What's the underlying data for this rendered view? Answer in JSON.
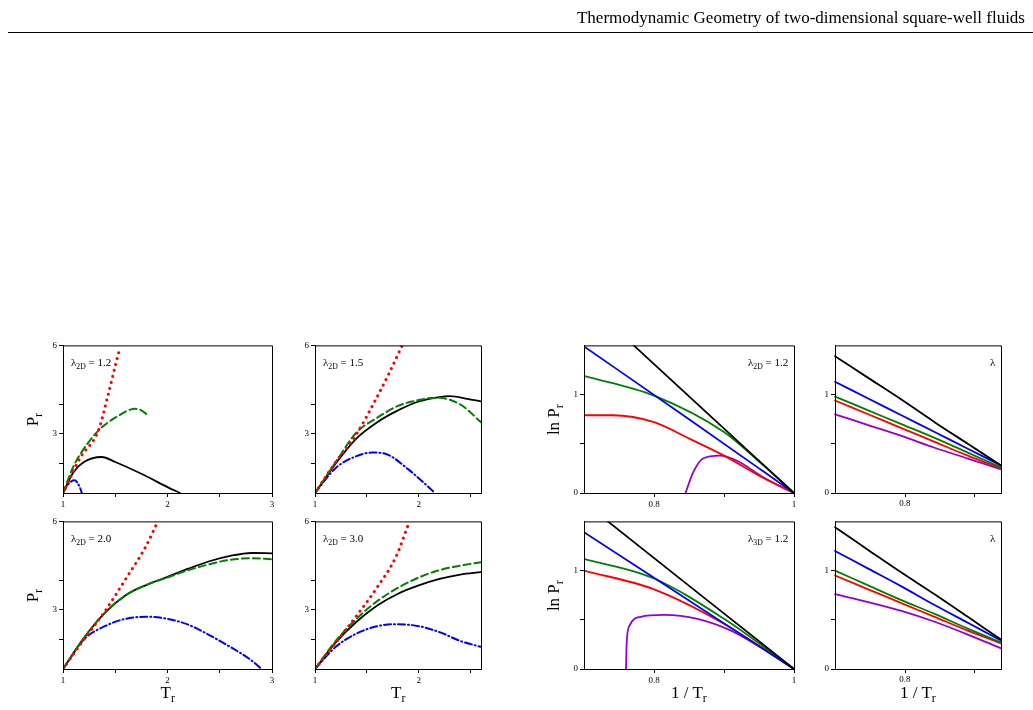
{
  "chart_data": [
    {
      "type": "line",
      "annotations": [
        "λ$_{2D}$ = 1.2"
      ],
      "ylabel": "P$_{r}$",
      "xlim": [
        1,
        3
      ],
      "ylim": [
        1,
        6
      ],
      "xticks": [
        1,
        {
          "value": 1.5,
          "label": null
        },
        2,
        {
          "value": 2.5,
          "label": null
        },
        3
      ],
      "yticks": [
        {
          "value": 2,
          "label": null
        },
        3,
        {
          "value": 4,
          "label": null
        },
        6
      ],
      "series": [
        {
          "color": "#ff0000",
          "line_style": "dotted",
          "x": [
            1,
            1.16,
            1.34,
            1.43,
            1.51,
            1.54
          ],
          "values": [
            1,
            2.17,
            3.13,
            4.3,
            5.45,
            5.85
          ]
        },
        {
          "color": "#008000",
          "line_style": "dashed",
          "x": [
            1,
            1.1,
            1.22,
            1.35,
            1.5,
            1.69,
            1.75,
            1.81
          ],
          "values": [
            1,
            1.9,
            2.6,
            3.15,
            3.55,
            3.85,
            3.8,
            3.64
          ]
        },
        {
          "color": "#000000",
          "line_style": "solid",
          "x": [
            1,
            1.1,
            1.2,
            1.37,
            1.5,
            1.75,
            2,
            2.12
          ],
          "values": [
            1,
            1.7,
            2.05,
            2.22,
            2.05,
            1.65,
            1.2,
            1
          ]
        },
        {
          "color": "#0000ff",
          "line_style": "dashdot",
          "x": [
            1,
            1.05,
            1.11,
            1.16,
            1.18
          ],
          "values": [
            1,
            1.3,
            1.43,
            1.2,
            1
          ]
        }
      ]
    },
    {
      "type": "line",
      "annotations": [
        "λ$_{2D}$ = 1.5"
      ],
      "xlim": [
        1,
        2.6
      ],
      "ylim": [
        1,
        6
      ],
      "xticks": [
        1,
        {
          "value": 1.5,
          "label": null
        },
        2,
        {
          "value": 2.5,
          "label": null
        }
      ],
      "yticks": [
        {
          "value": 2,
          "label": null
        },
        3,
        {
          "value": 4,
          "label": null
        },
        6
      ],
      "series": [
        {
          "color": "#ff0000",
          "line_style": "dotted",
          "x": [
            1,
            1.19,
            1.4,
            1.59,
            1.72,
            1.84
          ],
          "values": [
            1,
            2,
            3,
            4.2,
            5.1,
            6
          ]
        },
        {
          "color": "#008000",
          "line_style": "dashed",
          "x": [
            1,
            1.2,
            1.4,
            1.6,
            1.8,
            2,
            2.17,
            2.4,
            2.6
          ],
          "values": [
            1,
            2.05,
            3.05,
            3.55,
            3.95,
            4.15,
            4.23,
            4,
            3.4
          ]
        },
        {
          "color": "#000000",
          "line_style": "solid",
          "x": [
            1,
            1.2,
            1.4,
            1.6,
            1.8,
            2,
            2.2,
            2.3,
            2.45,
            2.6
          ],
          "values": [
            1,
            2,
            2.85,
            3.4,
            3.8,
            4.1,
            4.25,
            4.28,
            4.2,
            4.1
          ]
        },
        {
          "color": "#0000ff",
          "line_style": "dashdot",
          "x": [
            1,
            1.2,
            1.4,
            1.55,
            1.7,
            1.9,
            2,
            2.14
          ],
          "values": [
            1,
            1.85,
            2.25,
            2.37,
            2.3,
            1.8,
            1.5,
            1.05
          ]
        }
      ]
    },
    {
      "type": "line",
      "annotations": [
        "λ$_{2D}$ = 2.0"
      ],
      "xlabel": "T$_{r}$",
      "ylabel": "P$_{r}$",
      "xlim": [
        1,
        3
      ],
      "ylim": [
        1,
        6
      ],
      "xticks": [
        1,
        {
          "value": 1.5,
          "label": null
        },
        2,
        {
          "value": 2.5,
          "label": null
        },
        3
      ],
      "yticks": [
        {
          "value": 2,
          "label": null
        },
        3,
        {
          "value": 4,
          "label": null
        },
        6
      ],
      "series": [
        {
          "color": "#ff0000",
          "line_style": "dotted",
          "x": [
            1,
            1.2,
            1.4,
            1.6,
            1.8,
            1.9
          ],
          "values": [
            1,
            2,
            2.95,
            4.05,
            5.2,
            5.95
          ]
        },
        {
          "color": "#008000",
          "line_style": "dashed",
          "x": [
            1,
            1.2,
            1.4,
            1.6,
            1.8,
            2,
            2.2,
            2.4,
            2.6,
            2.8,
            3
          ],
          "values": [
            1,
            2.05,
            2.9,
            3.5,
            3.85,
            4.1,
            4.35,
            4.55,
            4.7,
            4.75,
            4.72
          ]
        },
        {
          "color": "#000000",
          "line_style": "solid",
          "x": [
            1,
            1.2,
            1.4,
            1.6,
            1.8,
            2,
            2.2,
            2.4,
            2.6,
            2.8,
            3
          ],
          "values": [
            1,
            2.05,
            2.9,
            3.5,
            3.85,
            4.12,
            4.4,
            4.65,
            4.83,
            4.93,
            4.92
          ]
        },
        {
          "color": "#0000ff",
          "line_style": "dashdot",
          "x": [
            1,
            1.2,
            1.4,
            1.6,
            1.8,
            2,
            2.2,
            2.4,
            2.6,
            2.8,
            2.9
          ],
          "values": [
            1,
            2,
            2.45,
            2.7,
            2.77,
            2.7,
            2.5,
            2.15,
            1.75,
            1.3,
            1
          ]
        }
      ]
    },
    {
      "type": "line",
      "annotations": [
        "λ$_{2D}$ = 3.0"
      ],
      "xlabel": "T$_{r}$",
      "xlim": [
        1,
        2.6
      ],
      "ylim": [
        1,
        6
      ],
      "xticks": [
        1,
        {
          "value": 1.5,
          "label": null
        },
        2,
        {
          "value": 2.5,
          "label": null
        }
      ],
      "yticks": [
        {
          "value": 2,
          "label": null
        },
        3,
        {
          "value": 4,
          "label": null
        },
        6
      ],
      "series": [
        {
          "color": "#ff0000",
          "line_style": "dotted",
          "x": [
            1,
            1.2,
            1.4,
            1.59,
            1.78,
            1.9
          ],
          "values": [
            1,
            1.9,
            2.8,
            3.72,
            4.8,
            5.9
          ]
        },
        {
          "color": "#008000",
          "line_style": "dashed",
          "x": [
            1,
            1.2,
            1.4,
            1.6,
            1.8,
            2,
            2.2,
            2.4,
            2.6
          ],
          "values": [
            1,
            1.95,
            2.7,
            3.3,
            3.75,
            4.1,
            4.35,
            4.5,
            4.62
          ]
        },
        {
          "color": "#000000",
          "line_style": "solid",
          "x": [
            1,
            1.2,
            1.4,
            1.6,
            1.8,
            2,
            2.2,
            2.4,
            2.6
          ],
          "values": [
            1,
            1.9,
            2.6,
            3.15,
            3.55,
            3.83,
            4.05,
            4.2,
            4.28
          ]
        },
        {
          "color": "#0000ff",
          "line_style": "dashdot",
          "x": [
            1,
            1.2,
            1.4,
            1.6,
            1.78,
            2,
            2.2,
            2.4,
            2.6
          ],
          "values": [
            1,
            1.75,
            2.2,
            2.45,
            2.52,
            2.45,
            2.25,
            1.95,
            1.75
          ]
        }
      ]
    },
    {
      "type": "line",
      "title": "Thermodynamic Geometry of two-dimensional square-well fluids",
      "annotations": [
        "λ$_{2D}$ = 1.2"
      ],
      "ylabel": "ln P$_{r}$",
      "xlim": [
        0.7,
        1
      ],
      "ylim": [
        0,
        1.5
      ],
      "xticks": [
        0.8,
        {
          "value": 0.9,
          "label": null
        },
        1
      ],
      "yticks": [
        0,
        {
          "value": 0.5,
          "label": null
        },
        1
      ],
      "series": [
        {
          "color": "#000000",
          "line_style": "solid",
          "x": [
            0.771,
            1
          ],
          "values": [
            1.5,
            0
          ]
        },
        {
          "color": "#0000ff",
          "line_style": "solid",
          "x": [
            0.7,
            0.85,
            1
          ],
          "values": [
            1.49,
            0.75,
            0
          ]
        },
        {
          "color": "#008000",
          "line_style": "solid",
          "x": [
            0.7,
            0.8,
            0.9,
            0.95,
            1
          ],
          "values": [
            1.19,
            0.99,
            0.62,
            0.32,
            0
          ]
        },
        {
          "color": "#ff0000",
          "line_style": "solid",
          "x": [
            0.7,
            0.741,
            0.8,
            0.851,
            0.9,
            0.957,
            1
          ],
          "values": [
            0.79,
            0.79,
            0.72,
            0.55,
            0.38,
            0.15,
            0
          ]
        },
        {
          "color": "#9400d3",
          "line_style": "solid",
          "x": [
            0.845,
            0.856,
            0.87,
            0.894,
            0.918,
            0.956,
            1
          ],
          "values": [
            0,
            0.21,
            0.35,
            0.38,
            0.33,
            0.16,
            0
          ]
        }
      ]
    },
    {
      "type": "line",
      "annotations": [
        "λ",
        "0.8"
      ],
      "categories": [
        null,
        null,
        null,
        null,
        null,
        null
      ],
      "ylim": [
        0,
        1.5
      ],
      "yticks": [
        0,
        {
          "value": 0.5,
          "label": null
        },
        1
      ],
      "series": [
        {
          "color": "#000000",
          "line_style": "solid",
          "values": [
            1.39,
            1.17,
            0.95,
            0.72,
            0.5,
            0.28
          ]
        },
        {
          "color": "#0000ff",
          "line_style": "solid",
          "values": [
            1.13,
            0.96,
            0.79,
            0.62,
            0.45,
            0.28
          ]
        },
        {
          "color": "#008000",
          "line_style": "solid",
          "values": [
            0.98,
            0.84,
            0.7,
            0.56,
            0.41,
            0.26
          ]
        },
        {
          "color": "#ff0000",
          "line_style": "solid",
          "values": [
            0.94,
            0.8,
            0.66,
            0.52,
            0.38,
            0.25
          ]
        },
        {
          "color": "#9400d3",
          "line_style": "solid",
          "values": [
            0.8,
            0.69,
            0.58,
            0.46,
            0.35,
            0.24
          ]
        }
      ]
    },
    {
      "type": "line",
      "annotations": [
        "λ$_{3D}$ = 1.2"
      ],
      "xlabel": "1 / T$_{r}$",
      "ylabel": "ln P$_{r}$",
      "xlim": [
        0.7,
        1
      ],
      "ylim": [
        0,
        1.5
      ],
      "xticks": [
        0.8,
        {
          "value": 0.9,
          "label": null
        },
        1
      ],
      "yticks": [
        0,
        {
          "value": 0.5,
          "label": null
        },
        1
      ],
      "series": [
        {
          "color": "#000000",
          "line_style": "solid",
          "x": [
            0.734,
            1
          ],
          "values": [
            1.5,
            0
          ]
        },
        {
          "color": "#0000ff",
          "line_style": "solid",
          "x": [
            0.7,
            1
          ],
          "values": [
            1.39,
            0
          ]
        },
        {
          "color": "#008000",
          "line_style": "solid",
          "x": [
            0.7,
            0.8,
            0.9,
            1
          ],
          "values": [
            1.12,
            0.92,
            0.51,
            0
          ]
        },
        {
          "color": "#ff0000",
          "line_style": "solid",
          "x": [
            0.7,
            0.8,
            0.9,
            1
          ],
          "values": [
            1,
            0.81,
            0.46,
            0
          ]
        },
        {
          "color": "#9400d3",
          "line_style": "solid",
          "x": [
            0.76,
            0.761,
            0.765,
            0.781,
            0.814,
            0.862,
            0.91,
            0.957,
            1
          ],
          "values": [
            0,
            0.27,
            0.44,
            0.53,
            0.55,
            0.51,
            0.39,
            0.2,
            0
          ]
        }
      ]
    },
    {
      "type": "line",
      "annotations": [
        "λ",
        "0.8"
      ],
      "xlabel": "1 / T$_{r}$",
      "categories": [
        null,
        null,
        null,
        null,
        null,
        null
      ],
      "ylim": [
        0,
        1.5
      ],
      "yticks": [
        0,
        {
          "value": 0.5,
          "label": null
        },
        1
      ],
      "series": [
        {
          "color": "#000000",
          "line_style": "solid",
          "values": [
            1.44,
            1.21,
            0.98,
            0.76,
            0.53,
            0.3
          ]
        },
        {
          "color": "#0000ff",
          "line_style": "solid",
          "values": [
            1.2,
            1.02,
            0.84,
            0.65,
            0.47,
            0.29
          ]
        },
        {
          "color": "#008000",
          "line_style": "solid",
          "values": [
            1,
            0.85,
            0.7,
            0.56,
            0.41,
            0.27
          ]
        },
        {
          "color": "#ff0000",
          "line_style": "solid",
          "values": [
            0.95,
            0.81,
            0.67,
            0.53,
            0.39,
            0.26
          ]
        },
        {
          "color": "#9400d3",
          "line_style": "solid",
          "values": [
            0.76,
            0.68,
            0.59,
            0.48,
            0.35,
            0.21
          ]
        }
      ]
    }
  ]
}
